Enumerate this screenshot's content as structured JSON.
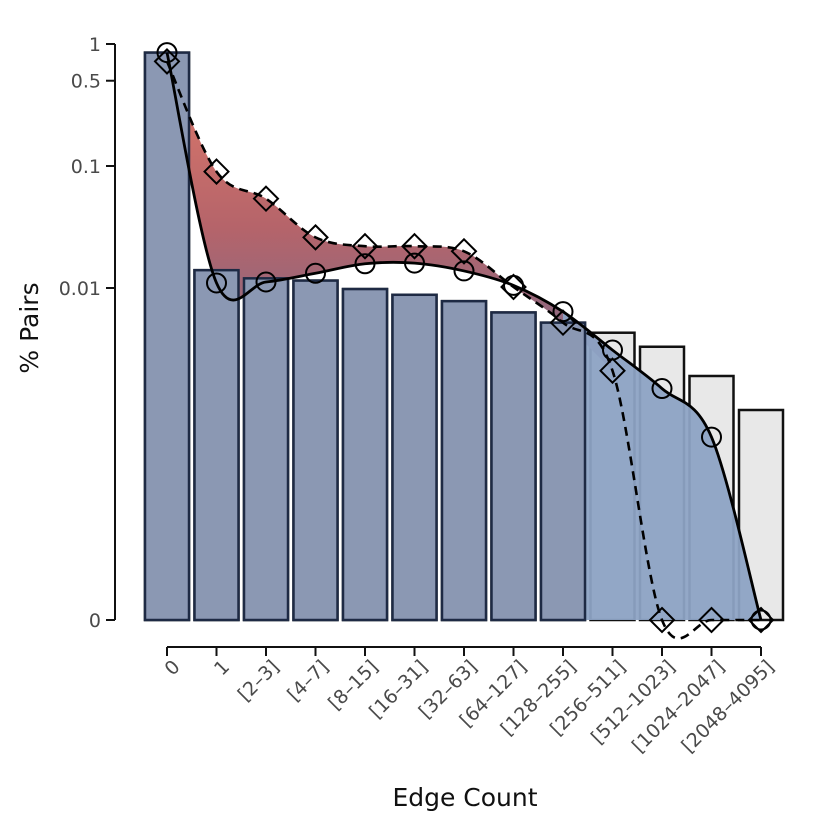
{
  "chart_data": {
    "type": "bar",
    "title": "",
    "xlabel": "Edge Count",
    "ylabel": "% Pairs",
    "y_scale": "log-like (0 mapped to baseline)",
    "y_ticks": [
      0,
      0.01,
      0.1,
      0.5,
      1
    ],
    "y_tick_labels": [
      "0",
      "0.01",
      "0.1",
      "0.5",
      "1"
    ],
    "categories": [
      "0",
      "1",
      "[2–3]",
      "[4–7]",
      "[8–15]",
      "[16–31]",
      "[32–63]",
      "[64–127]",
      "[128–255]",
      "[256–511]",
      "[512–1023]",
      "[1024–2047]",
      "[2048–4095]"
    ],
    "grid": false,
    "legend": "none",
    "series": [
      {
        "kind": "bars-light",
        "values": [
          0.85,
          0.014,
          0.012,
          0.0115,
          0.0098,
          0.0088,
          0.0078,
          0.0063,
          0.0052,
          0.0043,
          0.0033,
          0.0019,
          0.001
        ]
      },
      {
        "kind": "bars-filled",
        "values": [
          0.85,
          0.014,
          0.012,
          0.0115,
          0.0098,
          0.0088,
          0.0078,
          0.0063,
          0.0052,
          0,
          0,
          0,
          0
        ]
      },
      {
        "kind": "line-solid-circles",
        "values": [
          0.85,
          0.011,
          0.0112,
          0.0132,
          0.0158,
          0.016,
          0.0138,
          0.0105,
          0.0064,
          0.0031,
          0.0015,
          0.0006,
          0
        ]
      },
      {
        "kind": "line-dashed-diamonds",
        "values": [
          0.72,
          0.09,
          0.054,
          0.026,
          0.022,
          0.022,
          0.02,
          0.0102,
          0.0052,
          0.0021,
          0,
          0,
          0
        ]
      }
    ],
    "colors": {
      "bar_light": "#e8e8e8",
      "bar_filled": "#8b98b3",
      "gap_fill": "#e27b6a",
      "gap_fill_dark": "#8a6880",
      "tail_fill": "#8da3c4",
      "line": "#000000"
    }
  }
}
